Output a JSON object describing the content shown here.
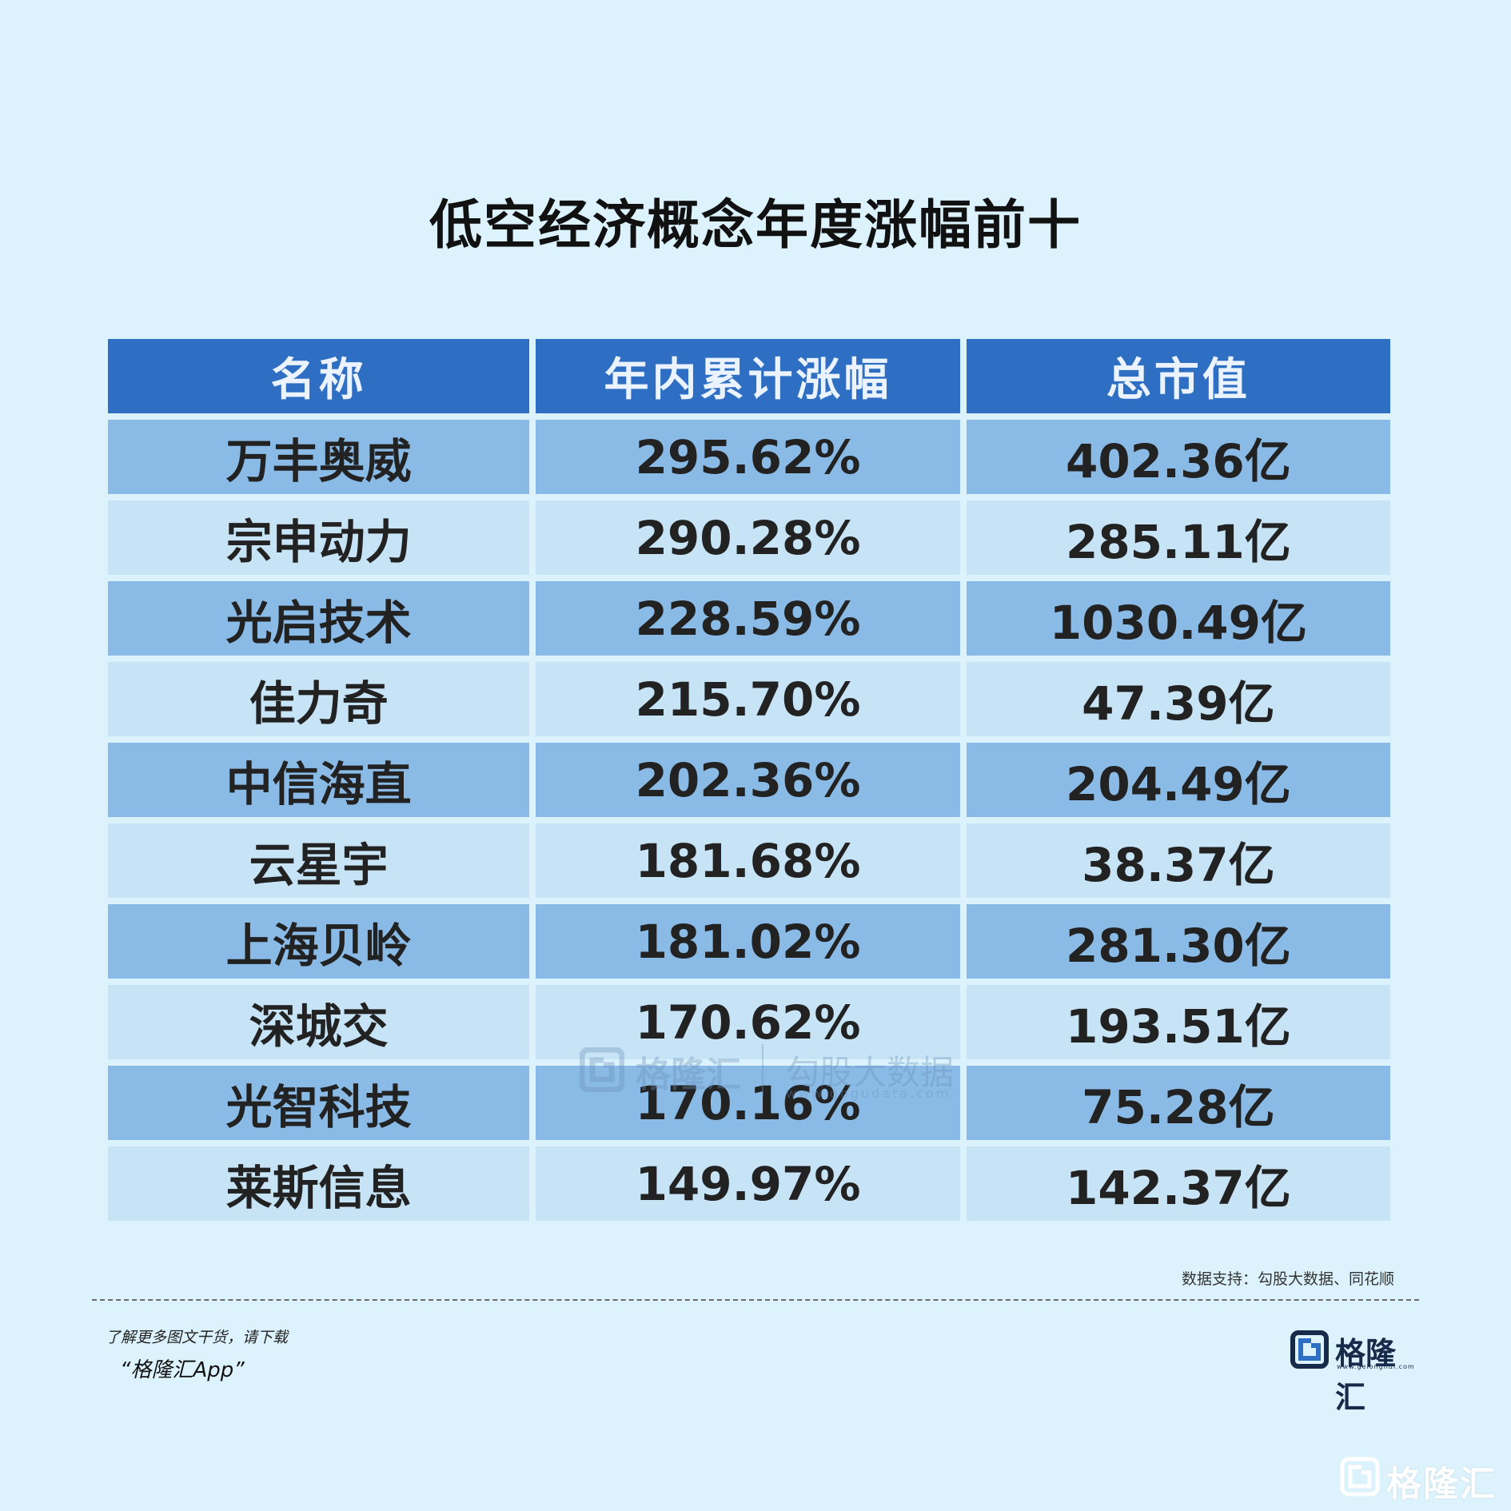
{
  "title": "低空经济概念年度涨幅前十",
  "table": {
    "headers": [
      "名称",
      "年内累计涨幅",
      "总市值"
    ],
    "rows": [
      {
        "name": "万丰奥威",
        "gain": "295.62%",
        "cap": "402.36亿"
      },
      {
        "name": "宗申动力",
        "gain": "290.28%",
        "cap": "285.11亿"
      },
      {
        "name": "光启技术",
        "gain": "228.59%",
        "cap": "1030.49亿"
      },
      {
        "name": "佳力奇",
        "gain": "215.70%",
        "cap": "47.39亿"
      },
      {
        "name": "中信海直",
        "gain": "202.36%",
        "cap": "204.49亿"
      },
      {
        "name": "云星宇",
        "gain": "181.68%",
        "cap": "38.37亿"
      },
      {
        "name": "上海贝岭",
        "gain": "181.02%",
        "cap": "281.30亿"
      },
      {
        "name": "深城交",
        "gain": "170.62%",
        "cap": "193.51亿"
      },
      {
        "name": "光智科技",
        "gain": "170.16%",
        "cap": "75.28亿"
      },
      {
        "name": "莱斯信息",
        "gain": "149.97%",
        "cap": "142.37亿"
      }
    ]
  },
  "watermark": {
    "brand": "格隆汇",
    "text": "勾股大数据",
    "url": "www.gogudata.com"
  },
  "source": "数据支持：勾股大数据、同花顺",
  "footer": {
    "promo_line1": "了解更多图文干货，请下载",
    "promo_line2": "“格隆汇App”",
    "logo_text": "格隆汇",
    "logo_url": "www.gelonghui.com",
    "corner_text": "格隆汇"
  },
  "colors": {
    "background": "#dcf3fd",
    "header": "#2f6fc3",
    "row_dark": "#8abbe6",
    "row_light": "#c7e4f7"
  }
}
